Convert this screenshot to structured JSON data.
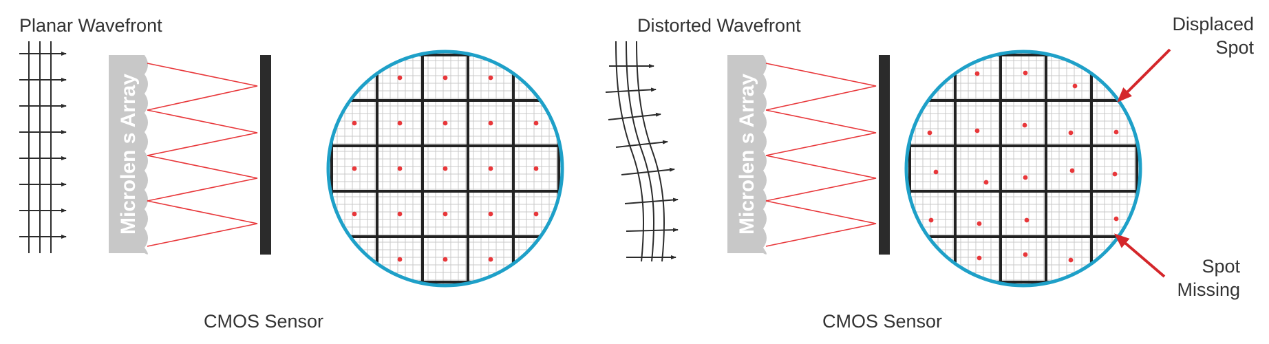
{
  "panels": [
    {
      "id": "planar",
      "title": "Planar Wavefront",
      "lens_array_label": "Microlen s Array",
      "sensor_label": "CMOS Sensor"
    },
    {
      "id": "distorted",
      "title": "Distorted Wavefront",
      "lens_array_label": "Microlen s Array",
      "sensor_label": "CMOS Sensor",
      "callouts": {
        "displaced": [
          "Displaced",
          "Spot"
        ],
        "missing": [
          "Spot",
          "Missing"
        ]
      }
    }
  ],
  "colors": {
    "ray": "#e8373a",
    "spot": "#e8373a",
    "lens_array": "#c8c8c8",
    "sensor": "#2b2b2b",
    "circle_border": "#1ea0c8",
    "grid_major": "#222222",
    "grid_minor": "#c9c9c9",
    "arrow": "#d4262a"
  }
}
